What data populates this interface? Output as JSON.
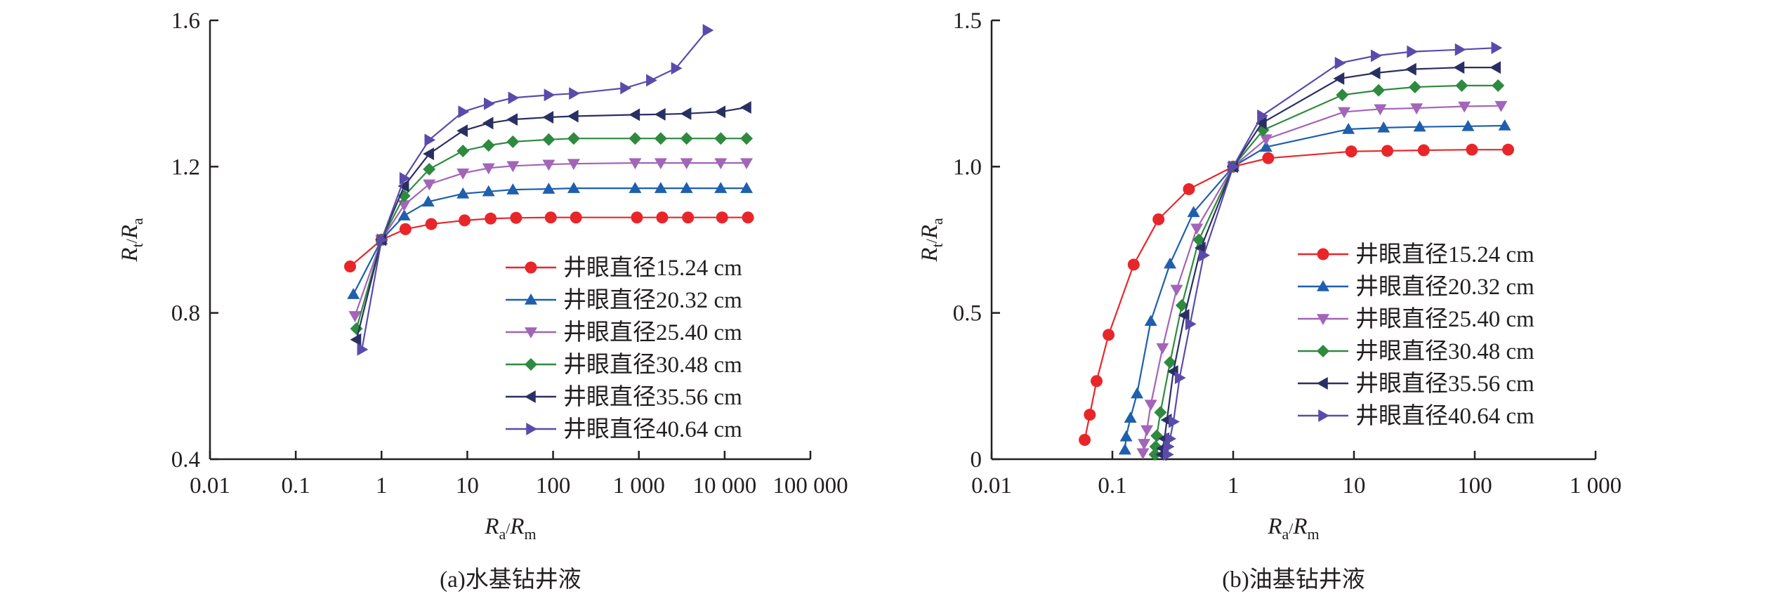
{
  "chart_data": [
    {
      "type": "line",
      "caption": "(a)水基钻井液",
      "xscale": "log",
      "xlim": [
        0.01,
        100000
      ],
      "ylim": [
        0.4,
        1.6
      ],
      "xticks": [
        0.01,
        0.1,
        1,
        10,
        100,
        1000,
        10000,
        100000
      ],
      "xtick_labels": [
        "0.01",
        "0.1",
        "1",
        "10",
        "100",
        "1 000",
        "10 000",
        "100 000"
      ],
      "yticks": [
        0.4,
        0.8,
        1.2,
        1.6
      ],
      "ytick_labels": [
        "0.4",
        "0.8",
        "1.2",
        "1.6"
      ],
      "xlabel": {
        "r1": "R",
        "s1": "a",
        "sep": "/",
        "r2": "R",
        "s2": "m"
      },
      "ylabel": {
        "r1": "R",
        "s1": "t",
        "sep": "/",
        "r2": "R",
        "s2": "a"
      },
      "legend_position": "center-right",
      "series": [
        {
          "name": "井眼直径15.24 cm",
          "color": "#e8262a",
          "marker": "circle",
          "x": [
            0.43,
            1,
            1.9,
            3.8,
            9.3,
            18.7,
            37,
            94,
            185,
            950,
            1870,
            3740,
            9340,
            18700
          ],
          "y": [
            0.927,
            1.0,
            1.029,
            1.043,
            1.053,
            1.058,
            1.06,
            1.061,
            1.061,
            1.061,
            1.061,
            1.061,
            1.061,
            1.061
          ]
        },
        {
          "name": "井眼直径20.32 cm",
          "color": "#1f5fad",
          "marker": "triangle-up",
          "x": [
            0.47,
            1,
            1.84,
            3.5,
            8.9,
            17.7,
            34,
            89,
            174,
            905,
            1800,
            3600,
            9000,
            18000
          ],
          "y": [
            0.851,
            1.0,
            1.066,
            1.104,
            1.126,
            1.132,
            1.137,
            1.139,
            1.141,
            1.141,
            1.141,
            1.141,
            1.141,
            1.141
          ]
        },
        {
          "name": "井眼直径25.40 cm",
          "color": "#a265b8",
          "marker": "triangle-down",
          "x": [
            0.49,
            1,
            1.84,
            3.6,
            8.9,
            17.7,
            34,
            89,
            174,
            905,
            1800,
            3600,
            9000,
            18000
          ],
          "y": [
            0.792,
            1.0,
            1.095,
            1.152,
            1.182,
            1.196,
            1.202,
            1.206,
            1.208,
            1.21,
            1.21,
            1.21,
            1.21,
            1.21
          ]
        },
        {
          "name": "井眼直径30.48 cm",
          "color": "#2f8a3f",
          "marker": "diamond",
          "x": [
            0.51,
            1,
            1.84,
            3.6,
            8.9,
            17.7,
            34,
            89,
            174,
            905,
            1800,
            3600,
            9000,
            18000
          ],
          "y": [
            0.757,
            1.0,
            1.12,
            1.193,
            1.243,
            1.258,
            1.268,
            1.274,
            1.277,
            1.277,
            1.277,
            1.277,
            1.277,
            1.277
          ]
        },
        {
          "name": "井眼直径35.56 cm",
          "color": "#2a2f63",
          "marker": "triangle-left",
          "x": [
            0.51,
            1,
            1.84,
            3.6,
            8.9,
            17.7,
            34,
            89,
            174,
            905,
            1800,
            3600,
            9000,
            18000
          ],
          "y": [
            0.727,
            1.0,
            1.147,
            1.235,
            1.298,
            1.319,
            1.329,
            1.335,
            1.338,
            1.342,
            1.343,
            1.345,
            1.35,
            1.362
          ]
        },
        {
          "name": "井眼直径40.64 cm",
          "color": "#5a4bab",
          "marker": "triangle-right",
          "x": [
            0.59,
            1,
            1.84,
            3.6,
            8.9,
            17.7,
            34,
            89,
            174,
            690,
            1380,
            2700,
            6300
          ],
          "y": [
            0.7,
            1.0,
            1.168,
            1.273,
            1.35,
            1.372,
            1.388,
            1.396,
            1.4,
            1.415,
            1.436,
            1.469,
            1.573
          ]
        }
      ]
    },
    {
      "type": "line",
      "caption": "(b)油基钻井液",
      "xscale": "log",
      "xlim": [
        0.01,
        1000
      ],
      "ylim": [
        0,
        1.5
      ],
      "xticks": [
        0.01,
        0.1,
        1,
        10,
        100,
        1000
      ],
      "xtick_labels": [
        "0.01",
        "0.1",
        "1",
        "10",
        "100",
        "1 000"
      ],
      "yticks": [
        0,
        0.5,
        1.0,
        1.5
      ],
      "ytick_labels": [
        "0",
        "0.5",
        "1.0",
        "1.5"
      ],
      "xlabel": {
        "r1": "R",
        "s1": "a",
        "sep": "/",
        "r2": "R",
        "s2": "m"
      },
      "ylabel": {
        "r1": "R",
        "s1": "t",
        "sep": "/",
        "r2": "R",
        "s2": "a"
      },
      "legend_position": "center-right",
      "series": [
        {
          "name": "井眼直径15.24 cm",
          "color": "#e8262a",
          "marker": "circle",
          "x": [
            0.059,
            0.065,
            0.074,
            0.093,
            0.15,
            0.241,
            0.43,
            1,
            1.95,
            9.5,
            18.9,
            37.8,
            94.8,
            189
          ],
          "y": [
            0.066,
            0.152,
            0.267,
            0.425,
            0.665,
            0.82,
            0.923,
            1.0,
            1.029,
            1.052,
            1.054,
            1.056,
            1.058,
            1.058
          ]
        },
        {
          "name": "井眼直径20.32 cm",
          "color": "#1f5fad",
          "marker": "triangle-up",
          "x": [
            0.127,
            0.13,
            0.141,
            0.16,
            0.208,
            0.3,
            0.47,
            1,
            1.87,
            9,
            17.6,
            35,
            88,
            177
          ],
          "y": [
            0.032,
            0.077,
            0.141,
            0.224,
            0.472,
            0.668,
            0.844,
            1.0,
            1.067,
            1.128,
            1.133,
            1.136,
            1.138,
            1.14
          ]
        },
        {
          "name": "井眼直径25.40 cm",
          "color": "#a265b8",
          "marker": "triangle-down",
          "x": [
            0.179,
            0.183,
            0.193,
            0.208,
            0.26,
            0.34,
            0.5,
            1,
            1.87,
            8.3,
            16.5,
            33,
            82,
            165
          ],
          "y": [
            0.021,
            0.053,
            0.1,
            0.187,
            0.38,
            0.58,
            0.789,
            1.0,
            1.094,
            1.187,
            1.197,
            1.2,
            1.206,
            1.208
          ]
        },
        {
          "name": "井眼直径30.48 cm",
          "color": "#2f8a3f",
          "marker": "diamond",
          "x": [
            0.225,
            0.228,
            0.233,
            0.25,
            0.3,
            0.376,
            0.52,
            1,
            1.77,
            8,
            16,
            32,
            78,
            156
          ],
          "y": [
            0.016,
            0.043,
            0.08,
            0.16,
            0.331,
            0.526,
            0.75,
            1.0,
            1.125,
            1.245,
            1.261,
            1.272,
            1.277,
            1.277
          ]
        },
        {
          "name": "井眼直径35.56 cm",
          "color": "#2a2f63",
          "marker": "triangle-left",
          "x": [
            0.256,
            0.26,
            0.27,
            0.283,
            0.32,
            0.396,
            0.54,
            1,
            1.73,
            7.6,
            15.1,
            30,
            75,
            150
          ],
          "y": [
            0.016,
            0.037,
            0.07,
            0.134,
            0.3,
            0.492,
            0.722,
            1.0,
            1.149,
            1.301,
            1.32,
            1.333,
            1.339,
            1.339
          ]
        },
        {
          "name": "井眼直径40.64 cm",
          "color": "#5a4bab",
          "marker": "triangle-right",
          "x": [
            0.287,
            0.29,
            0.3,
            0.32,
            0.36,
            0.44,
            0.57,
            1,
            1.73,
            7.6,
            15.1,
            30,
            75,
            150
          ],
          "y": [
            0.016,
            0.043,
            0.07,
            0.128,
            0.278,
            0.462,
            0.697,
            1.0,
            1.174,
            1.354,
            1.379,
            1.393,
            1.4,
            1.406
          ]
        }
      ]
    }
  ]
}
